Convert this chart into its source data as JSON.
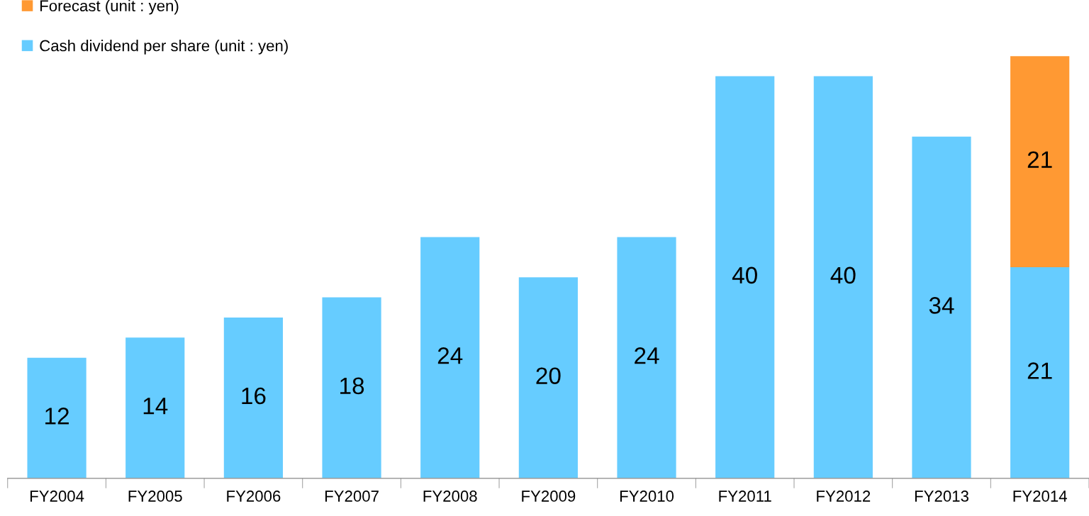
{
  "chart_data": {
    "type": "bar",
    "stacked": true,
    "data_labels": true,
    "legend": "top left",
    "categories": [
      "FY2004",
      "FY2005",
      "FY2006",
      "FY2007",
      "FY2008",
      "FY2009",
      "FY2010",
      "FY2011",
      "FY2012",
      "FY2013",
      "FY2014"
    ],
    "series": [
      {
        "name": "Cash dividend per share (unit : yen)",
        "color": "#66ccff",
        "values": [
          12,
          14,
          16,
          18,
          24,
          20,
          24,
          40,
          40,
          34,
          21
        ]
      },
      {
        "name": "Forecast (unit : yen)",
        "color": "#ff9933",
        "values": [
          null,
          null,
          null,
          null,
          null,
          null,
          null,
          null,
          null,
          null,
          21
        ]
      }
    ]
  }
}
